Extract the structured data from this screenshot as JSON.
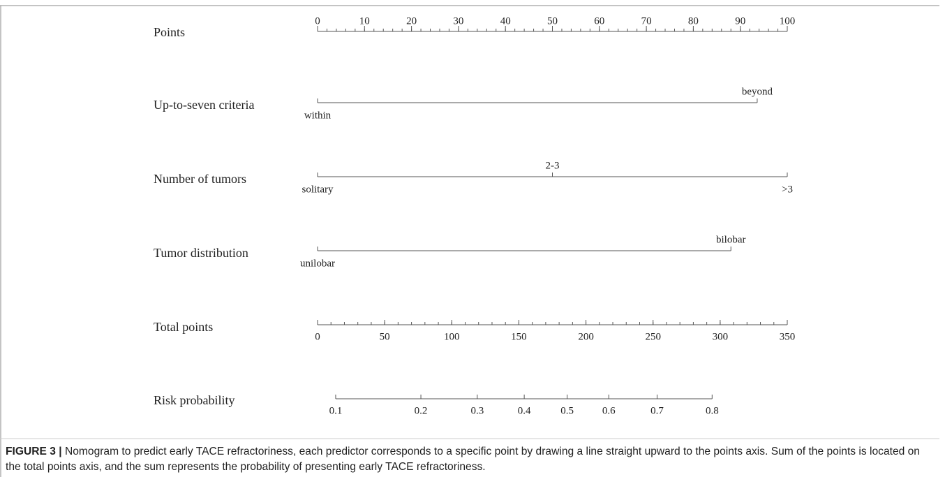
{
  "chart_data": {
    "type": "nomogram",
    "points_axis": {
      "label": "Points",
      "xlim": [
        0,
        100
      ],
      "xticks": [
        0,
        10,
        20,
        30,
        40,
        50,
        60,
        70,
        80,
        90,
        100
      ],
      "minor_ticks": [
        0,
        2,
        4,
        6,
        8,
        10,
        12,
        14,
        16,
        18,
        20,
        22,
        24,
        26,
        28,
        30,
        32,
        34,
        36,
        38,
        40,
        42,
        44,
        46,
        48,
        50,
        52,
        54,
        56,
        58,
        60,
        62,
        64,
        66,
        68,
        70,
        72,
        74,
        76,
        78,
        80,
        82,
        84,
        86,
        88,
        90,
        92,
        94,
        96,
        98,
        100
      ]
    },
    "predictors": [
      {
        "label": "Up-to-seven criteria",
        "levels": [
          {
            "name": "within",
            "points": 0
          },
          {
            "name": "beyond",
            "points": 93.6
          }
        ]
      },
      {
        "label": "Number of tumors",
        "levels": [
          {
            "name": "solitary",
            "points": 0
          },
          {
            "name": "2-3",
            "points": 50
          },
          {
            "name": ">3",
            "points": 100
          }
        ]
      },
      {
        "label": "Tumor distribution",
        "levels": [
          {
            "name": "unilobar",
            "points": 0
          },
          {
            "name": "bilobar",
            "points": 88
          }
        ]
      }
    ],
    "total_axis": {
      "label": "Total points",
      "xlim": [
        0,
        350
      ],
      "xticks": [
        0,
        50,
        100,
        150,
        200,
        250,
        300,
        350
      ],
      "minor_ticks": [
        0,
        10,
        20,
        30,
        40,
        50,
        60,
        70,
        80,
        90,
        100,
        110,
        120,
        130,
        140,
        150,
        160,
        170,
        180,
        190,
        200,
        210,
        220,
        230,
        240,
        250,
        260,
        270,
        280,
        290,
        300,
        310,
        320,
        330,
        340,
        350
      ]
    },
    "risk_axis": {
      "label": "Risk probability",
      "ticks": [
        0.1,
        0.2,
        0.3,
        0.4,
        0.5,
        0.6,
        0.7,
        0.8
      ],
      "tick_points": [
        13.5,
        77,
        119,
        154,
        186,
        217,
        253,
        294
      ]
    },
    "caption": {
      "label": "FIGURE 3 |",
      "text": "Nomogram to predict early TACE refractoriness, each predictor corresponds to a specific point by drawing a line straight upward to the points axis. Sum of the points is located on the total points axis, and the sum represents the probability of presenting early TACE refractoriness."
    }
  }
}
